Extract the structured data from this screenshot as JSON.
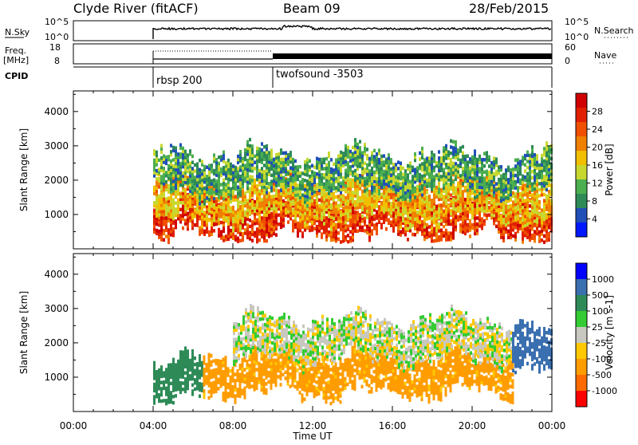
{
  "header": {
    "station": "Clyde River (fitACF)",
    "beam": "Beam 09",
    "date": "28/Feb/2015"
  },
  "side_labels": {
    "nsky_label": "N.Sky",
    "nsky_ticks": [
      "10^5",
      "10^0"
    ],
    "nsearch_label": "N.Search",
    "freq_label_line1": "Freq.",
    "freq_label_line2": "[MHz]",
    "freq_ticks": [
      "18",
      "8"
    ],
    "nave_label": "Nave",
    "nave_ticks": [
      "60",
      "0"
    ],
    "nsearch_ticks": [
      "10^5",
      "10^0"
    ],
    "cpid_label": "CPID"
  },
  "cpid_segments": [
    {
      "start": "04:00",
      "name": "rbsp 200"
    },
    {
      "start": "10:00",
      "name": "twofsound -3503"
    }
  ],
  "time_axis": {
    "label": "Time UT",
    "ticks": [
      "00:00",
      "04:00",
      "08:00",
      "12:00",
      "16:00",
      "20:00",
      "00:00"
    ]
  },
  "colors": {
    "power": [
      "#0018ff",
      "#2050b8",
      "#2e8b57",
      "#4caf50",
      "#c8d830",
      "#f0c000",
      "#f08000",
      "#f05000",
      "#e02000",
      "#d00000"
    ],
    "velocity": [
      "#ff0000",
      "#ff6a00",
      "#ff9c00",
      "#ffc800",
      "#c8c8c0",
      "#33cc33",
      "#2e8b57",
      "#3a6fb0",
      "#0000ff"
    ]
  },
  "chart_data": [
    {
      "type": "heatmap",
      "name": "power",
      "title": "",
      "xlabel": "Time UT",
      "ylabel": "Slant Range [km]",
      "ylim": [
        0,
        4600
      ],
      "xlim_hours": [
        0,
        24
      ],
      "y_ticks": [
        1000,
        2000,
        3000,
        4000
      ],
      "colorbar": {
        "label": "Power [dB]",
        "ticks": [
          "4",
          "8",
          "12",
          "16",
          "20",
          "24",
          "28"
        ],
        "range": [
          0,
          32
        ]
      },
      "description_bands": [
        {
          "t_start": 4.0,
          "t_end": 24.0,
          "range_center_km": 900,
          "value_db": 26
        },
        {
          "t_start": 4.0,
          "t_end": 24.0,
          "range_center_km": 1400,
          "value_db": 18
        },
        {
          "t_start": 4.0,
          "t_end": 24.0,
          "range_center_km": 2200,
          "value_db": 10
        }
      ]
    },
    {
      "type": "heatmap",
      "name": "velocity",
      "title": "",
      "xlabel": "Time UT",
      "ylabel": "Slant Range [km]",
      "ylim": [
        0,
        4600
      ],
      "xlim_hours": [
        0,
        24
      ],
      "y_ticks": [
        1000,
        2000,
        3000,
        4000
      ],
      "colorbar": {
        "label": "Velocity [m s-1]",
        "ticks": [
          "-1000",
          "-500",
          "-100",
          "-25",
          "25",
          "100",
          "500",
          "1000"
        ],
        "range": [
          -1000,
          1000
        ]
      },
      "description_bands": [
        {
          "t_start": 4.0,
          "t_end": 6.5,
          "range_center_km": 900,
          "value_ms": 200
        },
        {
          "t_start": 6.5,
          "t_end": 22.0,
          "range_center_km": 1100,
          "value_ms": -150
        },
        {
          "t_start": 8.0,
          "t_end": 22.0,
          "range_center_km": 2100,
          "value_ms": 0
        },
        {
          "t_start": 22.0,
          "t_end": 24.0,
          "range_center_km": 1700,
          "value_ms": 900
        }
      ]
    }
  ]
}
